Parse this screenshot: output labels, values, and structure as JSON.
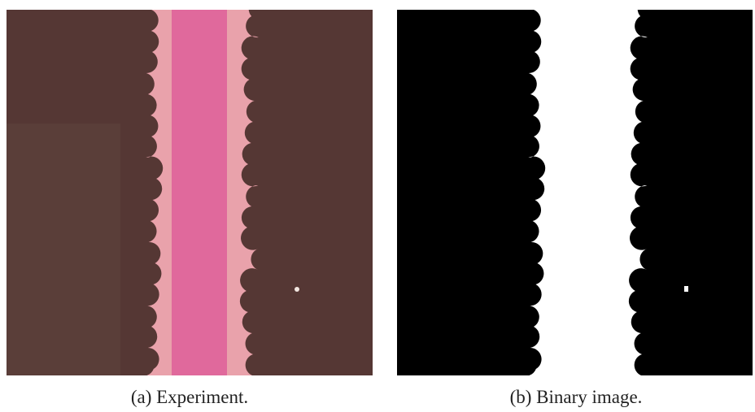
{
  "figure": {
    "panels": [
      {
        "caption": "(a) Experiment."
      },
      {
        "caption": "(b) Binary image."
      }
    ]
  }
}
